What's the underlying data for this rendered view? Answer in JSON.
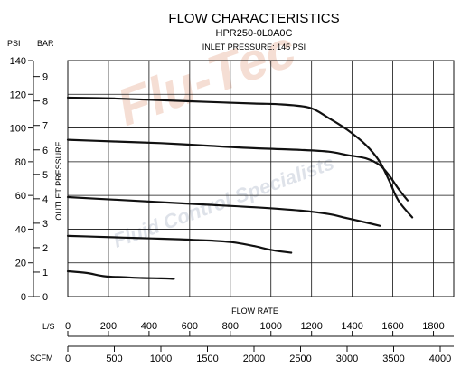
{
  "chart_data": {
    "type": "line",
    "title": "FLOW CHARACTERISTICS",
    "subtitle": "HPR250-0L0A0C",
    "note": "INLET PRESSURE: 145 PSI",
    "watermark": "Flu-Tec",
    "watermark_sub": "Fluid Control Specialists",
    "ylabel": "OUTLET PRESSURE",
    "xlabel": "FLOW RATE",
    "y_unit_psi": "PSI",
    "y_unit_bar": "BAR",
    "x_unit_ls": "L/S",
    "x_unit_scfm": "SCFM",
    "ylim_psi": [
      0,
      140
    ],
    "psi_ticks": [
      "0",
      "20",
      "40",
      "60",
      "80",
      "100",
      "120",
      "140"
    ],
    "bar_ticks": [
      "0",
      "1",
      "2",
      "3",
      "4",
      "5",
      "6",
      "7",
      "8",
      "9"
    ],
    "ls_ticks": [
      "0",
      "200",
      "400",
      "600",
      "800",
      "1000",
      "1200",
      "1400",
      "1600",
      "1800"
    ],
    "scfm_ticks": [
      "0",
      "500",
      "1000",
      "1500",
      "2000",
      "2500",
      "3000",
      "3500",
      "4000"
    ],
    "xlim_ls": [
      0,
      1900
    ],
    "grid": true,
    "series": [
      {
        "x": [
          0,
          200,
          400,
          600,
          800,
          1000,
          1140
        ],
        "y": [
          15,
          14,
          12,
          11.5,
          11,
          10.8,
          10.5
        ]
      },
      {
        "x": [
          0,
          300,
          600,
          900,
          1200,
          1400,
          1600,
          1800,
          2000,
          2200,
          2400
        ],
        "y": [
          36,
          35.5,
          35,
          34.5,
          34,
          33.5,
          33,
          32,
          30,
          27.5,
          26
        ]
      },
      {
        "x": [
          0,
          500,
          1000,
          1500,
          2000,
          2500,
          2800,
          3000,
          3200,
          3350
        ],
        "y": [
          59,
          57.5,
          56,
          54.5,
          53,
          51,
          49,
          46.5,
          44,
          42
        ]
      },
      {
        "x": [
          0,
          500,
          1000,
          1500,
          2000,
          2500,
          2800,
          3000,
          3200,
          3350,
          3450,
          3550,
          3650
        ],
        "y": [
          93,
          92,
          91,
          89.5,
          88,
          87,
          86,
          84,
          82,
          78,
          72,
          64,
          57
        ]
      },
      {
        "x": [
          0,
          500,
          1000,
          1500,
          2000,
          2300,
          2600,
          2800,
          3000,
          3200,
          3350,
          3450,
          3550,
          3700
        ],
        "y": [
          118,
          117.5,
          116.5,
          115.5,
          114.5,
          114,
          112,
          106,
          99,
          90,
          80,
          69,
          57,
          47
        ]
      }
    ],
    "series_x_unit": "SCFM",
    "series_y_unit": "PSI"
  }
}
